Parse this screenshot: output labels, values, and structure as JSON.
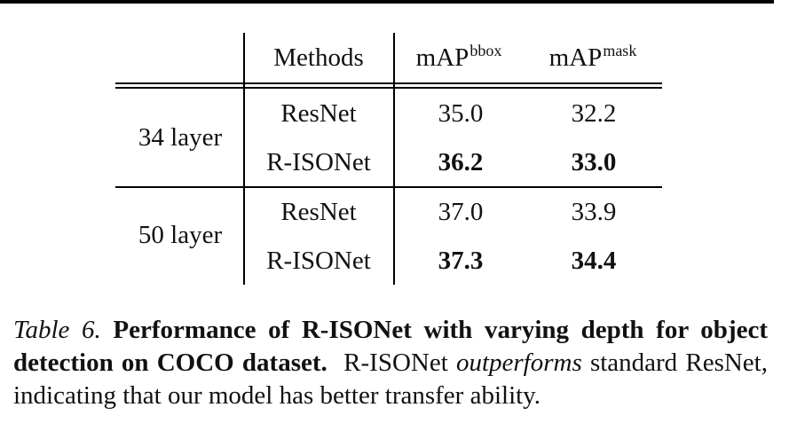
{
  "table": {
    "headers": {
      "group": "",
      "methods": "Methods",
      "bbox_base": "mAP",
      "bbox_sup": "bbox",
      "mask_base": "mAP",
      "mask_sup": "mask"
    },
    "groups": [
      {
        "label": "34 layer",
        "rows": [
          {
            "method": "ResNet",
            "bbox": "35.0",
            "mask": "32.2",
            "bold": false
          },
          {
            "method": "R-ISONet",
            "bbox": "36.2",
            "mask": "33.0",
            "bold": true
          }
        ]
      },
      {
        "label": "50 layer",
        "rows": [
          {
            "method": "ResNet",
            "bbox": "37.0",
            "mask": "33.9",
            "bold": false
          },
          {
            "method": "R-ISONet",
            "bbox": "37.3",
            "mask": "34.4",
            "bold": true
          }
        ]
      }
    ]
  },
  "caption": {
    "number": "Table 6.",
    "title": "Performance of R-ISONet with varying depth for object detection on COCO dataset.",
    "text_before": "R-ISONet",
    "emphasis": "outperforms",
    "text_after": "standard ResNet, indicating that our model has better transfer ability."
  }
}
